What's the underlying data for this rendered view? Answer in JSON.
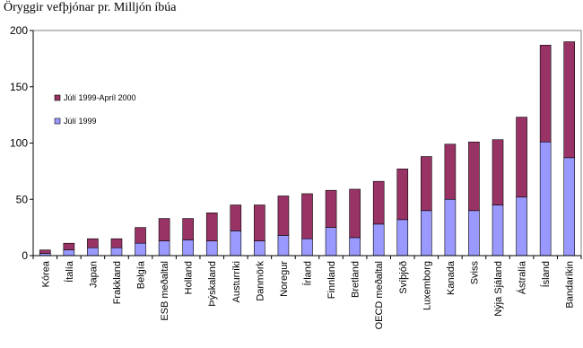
{
  "chart_data": {
    "type": "bar",
    "stacked": true,
    "title": "Öryggir vefþjónar pr. Milljón íbúa",
    "xlabel": "",
    "ylabel": "",
    "ylim": [
      0,
      200
    ],
    "yticks": [
      0,
      50,
      100,
      150,
      200
    ],
    "grid": false,
    "legend_position": "upper-left (inside plot)",
    "categories": [
      "Kórea",
      "Ítalía",
      "Japan",
      "Frakkland",
      "Belgía",
      "ESB meðaltal",
      "Holland",
      "Þýskaland",
      "Austurríki",
      "Danmörk",
      "Noregur",
      "Írland",
      "Finnland",
      "Bretland",
      "OECD meðaltal",
      "Svíþjóð",
      "Luxemborg",
      "Kanada",
      "Sviss",
      "Nýja Sjáland",
      "Ástralía",
      "Ísland",
      "Bandaríkin"
    ],
    "series": [
      {
        "name": "Júlí 1999",
        "color": "#9999ff",
        "values": [
          2,
          5,
          7,
          7,
          11,
          13,
          14,
          13,
          22,
          13,
          18,
          15,
          25,
          16,
          28,
          32,
          40,
          50,
          40,
          45,
          52,
          101,
          87
        ]
      },
      {
        "name": "Júlí 1999-Apríl 2000",
        "color": "#993366",
        "values": [
          3,
          6,
          8,
          8,
          14,
          20,
          19,
          25,
          23,
          32,
          35,
          40,
          33,
          43,
          38,
          45,
          48,
          49,
          61,
          58,
          71,
          86,
          103
        ]
      }
    ]
  }
}
